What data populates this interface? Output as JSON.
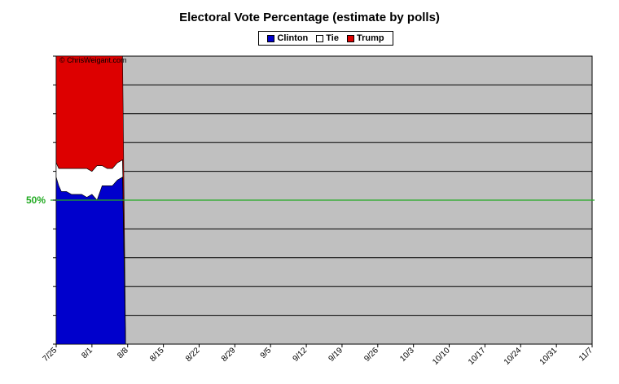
{
  "chart_data": {
    "type": "area",
    "title": "Electoral Vote Percentage (estimate by polls)",
    "watermark": "© ChrisWeigant.com",
    "reference_label": "50%",
    "reference_value": 50,
    "ylim": [
      0,
      100
    ],
    "x_tick_labels": [
      "7/25",
      "8/1",
      "8/8",
      "8/15",
      "8/22",
      "8/29",
      "9/5",
      "9/12",
      "9/19",
      "9/26",
      "10/3",
      "10/10",
      "10/17",
      "10/24",
      "10/31",
      "11/7"
    ],
    "x_range_days": [
      0,
      105
    ],
    "grid": true,
    "legend_position": "top-center",
    "colors": {
      "clinton": "#0000cc",
      "tie": "#ffffff",
      "trump": "#dd0000",
      "plot_bg": "#c0c0c0",
      "reference_line": "#22aa22",
      "reference_text": "#22aa22"
    },
    "series": [
      {
        "name": "Clinton",
        "color": "#0000cc",
        "x": [
          0,
          0.5,
          1,
          2,
          3,
          4,
          5,
          6,
          7,
          8,
          9,
          10,
          11,
          12,
          13,
          13.6
        ],
        "values": [
          58,
          55,
          53,
          53,
          52,
          52,
          52,
          51,
          52,
          50,
          55,
          55,
          55,
          57,
          58,
          0
        ]
      },
      {
        "name": "Tie",
        "color": "#ffffff",
        "x": [
          0,
          0.5,
          1,
          2,
          3,
          4,
          5,
          6,
          7,
          8,
          9,
          10,
          11,
          12,
          13,
          13.6
        ],
        "values": [
          5,
          6,
          8,
          8,
          9,
          9,
          9,
          10,
          8,
          12,
          7,
          6,
          6,
          6,
          6,
          0
        ]
      },
      {
        "name": "Trump",
        "color": "#dd0000",
        "x": [
          0,
          0.5,
          1,
          2,
          3,
          4,
          5,
          6,
          7,
          8,
          9,
          10,
          11,
          12,
          13,
          13.6
        ],
        "values": [
          37,
          39,
          39,
          39,
          39,
          39,
          39,
          39,
          40,
          38,
          38,
          39,
          39,
          37,
          36,
          0
        ]
      }
    ]
  }
}
